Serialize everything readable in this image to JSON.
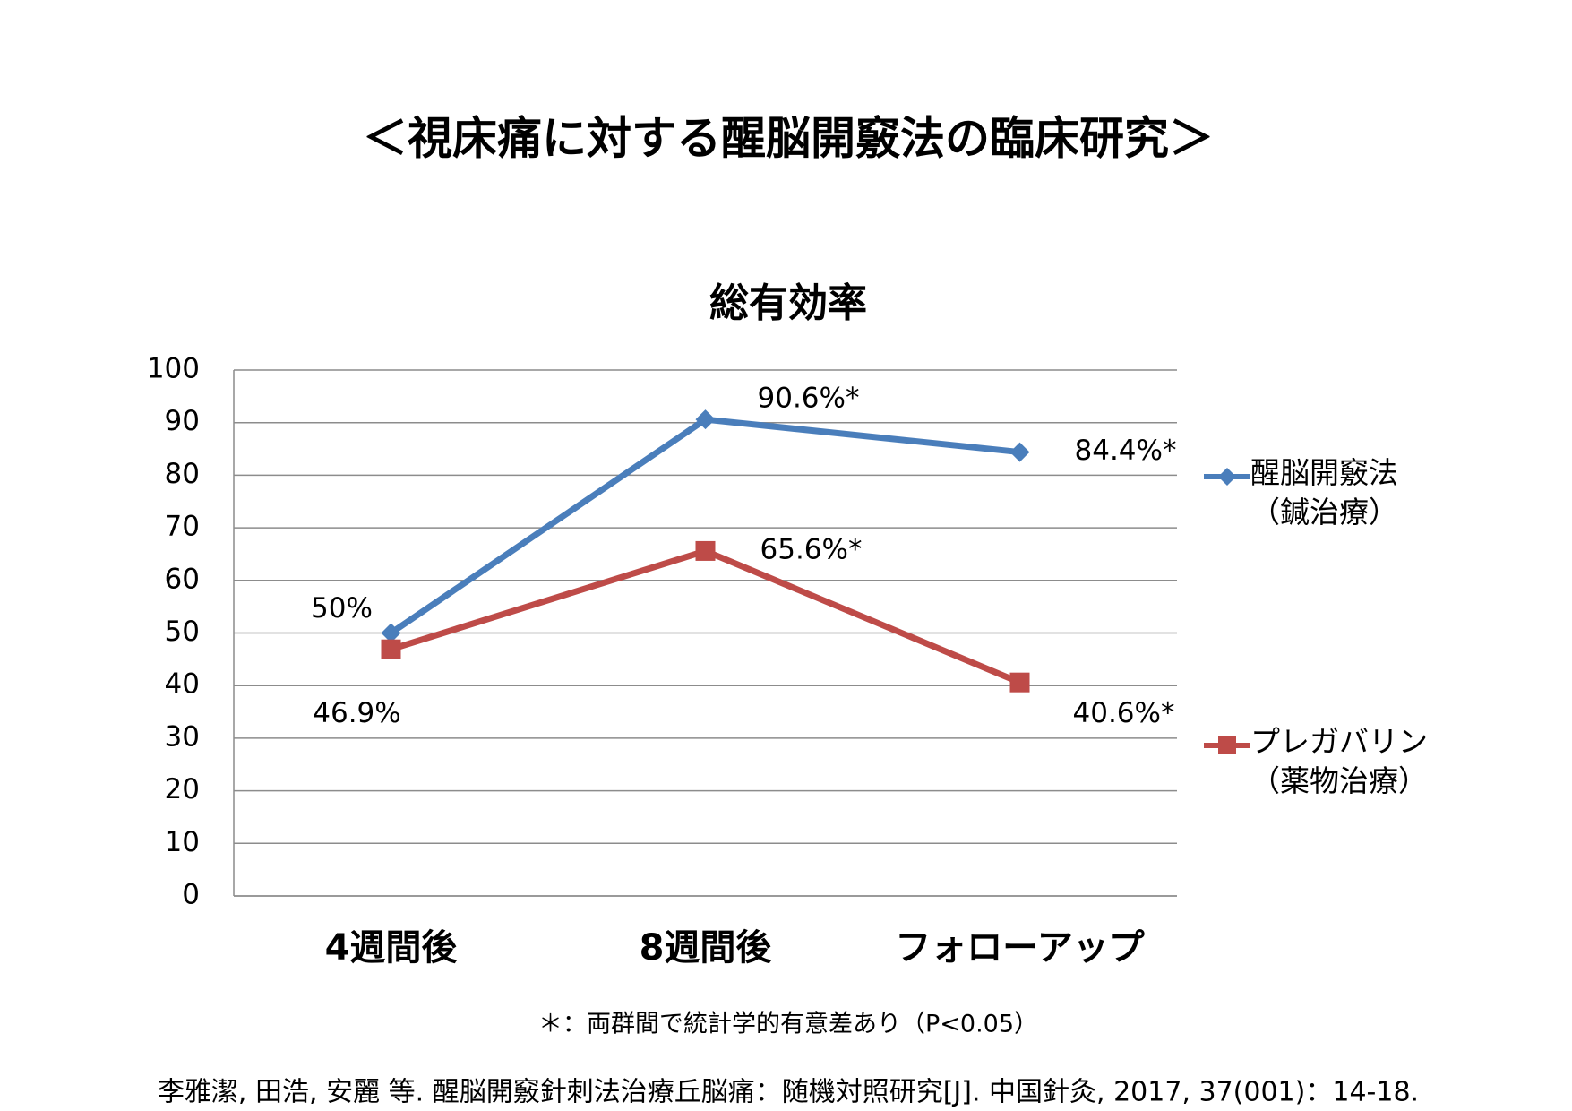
{
  "chart_data": {
    "type": "line",
    "title": "＜視床痛に対する醒脳開竅法の臨床研究＞",
    "subtitle": "総有効率",
    "categories": [
      "4週間後",
      "8週間後",
      "フォローアップ"
    ],
    "series": [
      {
        "name": "醒脳開竅法\n（鍼治療）",
        "color": "#4a7ebb",
        "marker": "diamond",
        "values": [
          50,
          90.6,
          84.4
        ],
        "value_labels": [
          "50%",
          "90.6%*",
          "84.4%*"
        ]
      },
      {
        "name": "プレガバリン\n（薬物治療）",
        "color": "#be4b48",
        "marker": "square",
        "values": [
          46.9,
          65.6,
          40.6
        ],
        "value_labels": [
          "46.9%",
          "65.6%*",
          "40.6%*"
        ]
      }
    ],
    "ylim": [
      0,
      100
    ],
    "yticks": [
      0,
      10,
      20,
      30,
      40,
      50,
      60,
      70,
      80,
      90,
      100
    ],
    "grid": true,
    "legend": "right",
    "annotations": [
      "＊：両群間で統計学的有意差あり（P<0.05）",
      "李雅潔, 田浩, 安麗 等. 醒脳開竅針刺法治療丘脳痛：随機対照研究[J]. 中国針灸, 2017, 37(001)：14-18."
    ]
  }
}
